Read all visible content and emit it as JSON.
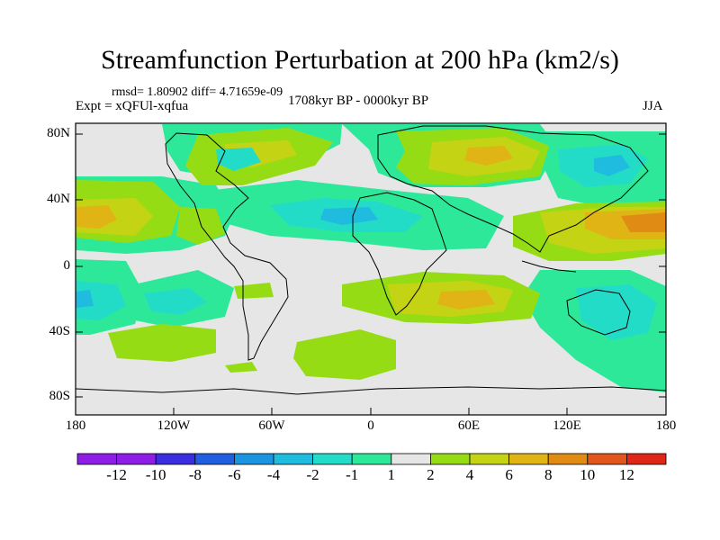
{
  "title": "Streamfunction Perturbation at 200 hPa (km2/s)",
  "stats": "rmsd= 1.80902 diff= 4.71659e-09",
  "experiment": "Expt = xQFUl-xqfua",
  "period": "1708kyr BP - 0000kyr BP",
  "season": "JJA",
  "lat_labels": [
    "80N",
    "40N",
    "0",
    "40S",
    "80S"
  ],
  "lon_labels": [
    "180",
    "120W",
    "60W",
    "0",
    "60E",
    "120E",
    "180"
  ],
  "colorbar": {
    "labels": [
      "-12",
      "-10",
      "-8",
      "-6",
      "-4",
      "-2",
      "-1",
      "1",
      "2",
      "4",
      "6",
      "8",
      "10",
      "12"
    ],
    "colors": [
      "#8e1ee6",
      "#3a2ee0",
      "#1f5fe0",
      "#1c95e0",
      "#20bce0",
      "#23dcc8",
      "#2ee89a",
      "#e6e6e6",
      "#96dc14",
      "#c4d414",
      "#e0b414",
      "#e08c14",
      "#e0561c",
      "#e02616"
    ]
  }
}
